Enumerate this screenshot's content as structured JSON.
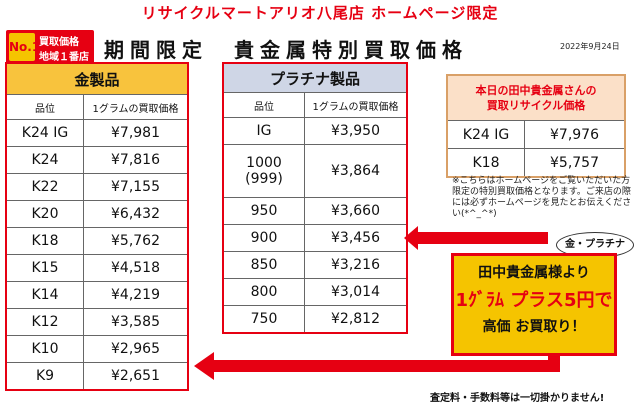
{
  "header": {
    "headline": "リサイクルマートアリオ八尾店 ホームページ限定",
    "badge_no1": "No.1",
    "badge_line1": "買取価格",
    "badge_line2": "地域１番店",
    "title": "期間限定　貴金属特別買取価格",
    "date": "2022年9月24日"
  },
  "gold": {
    "caption": "金製品",
    "col1": "品位",
    "col2": "1グラムの買取価格",
    "rows": [
      {
        "grade": "K24 IG",
        "price": "¥7,981"
      },
      {
        "grade": "K24",
        "price": "¥7,816"
      },
      {
        "grade": "K22",
        "price": "¥7,155"
      },
      {
        "grade": "K20",
        "price": "¥6,432"
      },
      {
        "grade": "K18",
        "price": "¥5,762"
      },
      {
        "grade": "K15",
        "price": "¥4,518"
      },
      {
        "grade": "K14",
        "price": "¥4,219"
      },
      {
        "grade": "K12",
        "price": "¥3,585"
      },
      {
        "grade": "K10",
        "price": "¥2,965"
      },
      {
        "grade": "K9",
        "price": "¥2,651"
      }
    ]
  },
  "platinum": {
    "caption": "プラチナ製品",
    "col1": "品位",
    "col2": "1グラムの買取価格",
    "rows": [
      {
        "grade": "IG",
        "price": "¥3,950"
      },
      {
        "grade": "1000\n(999)",
        "price": "¥3,864"
      },
      {
        "grade": "950",
        "price": "¥3,660"
      },
      {
        "grade": "900",
        "price": "¥3,456"
      },
      {
        "grade": "850",
        "price": "¥3,216"
      },
      {
        "grade": "800",
        "price": "¥3,014"
      },
      {
        "grade": "750",
        "price": "¥2,812"
      }
    ]
  },
  "tanaka": {
    "caption_line1": "本日の田中貴金属さんの",
    "caption_line2": "買取リサイクル価格",
    "rows": [
      {
        "grade": "K24 IG",
        "price": "¥7,976"
      },
      {
        "grade": "K18",
        "price": "¥5,757"
      }
    ]
  },
  "note": "※こちらはホームページをご覧いただいた方限定の特別買取価格となります。ご来店の際には必ずホームページを見たとお伝えください(*^_^*)",
  "oval": "金・プラチナ",
  "promo": {
    "line1": "田中貴金属様より",
    "line2": "1ｸﾞﾗﾑ プラス5円で",
    "line3": "高価 お買取り！"
  },
  "footer": "査定料・手数料等は一切掛かりません!",
  "colors": {
    "accent": "#e60012",
    "gold": "#f8c33d",
    "platinum": "#cfd6e6",
    "promo": "#f5c400"
  }
}
